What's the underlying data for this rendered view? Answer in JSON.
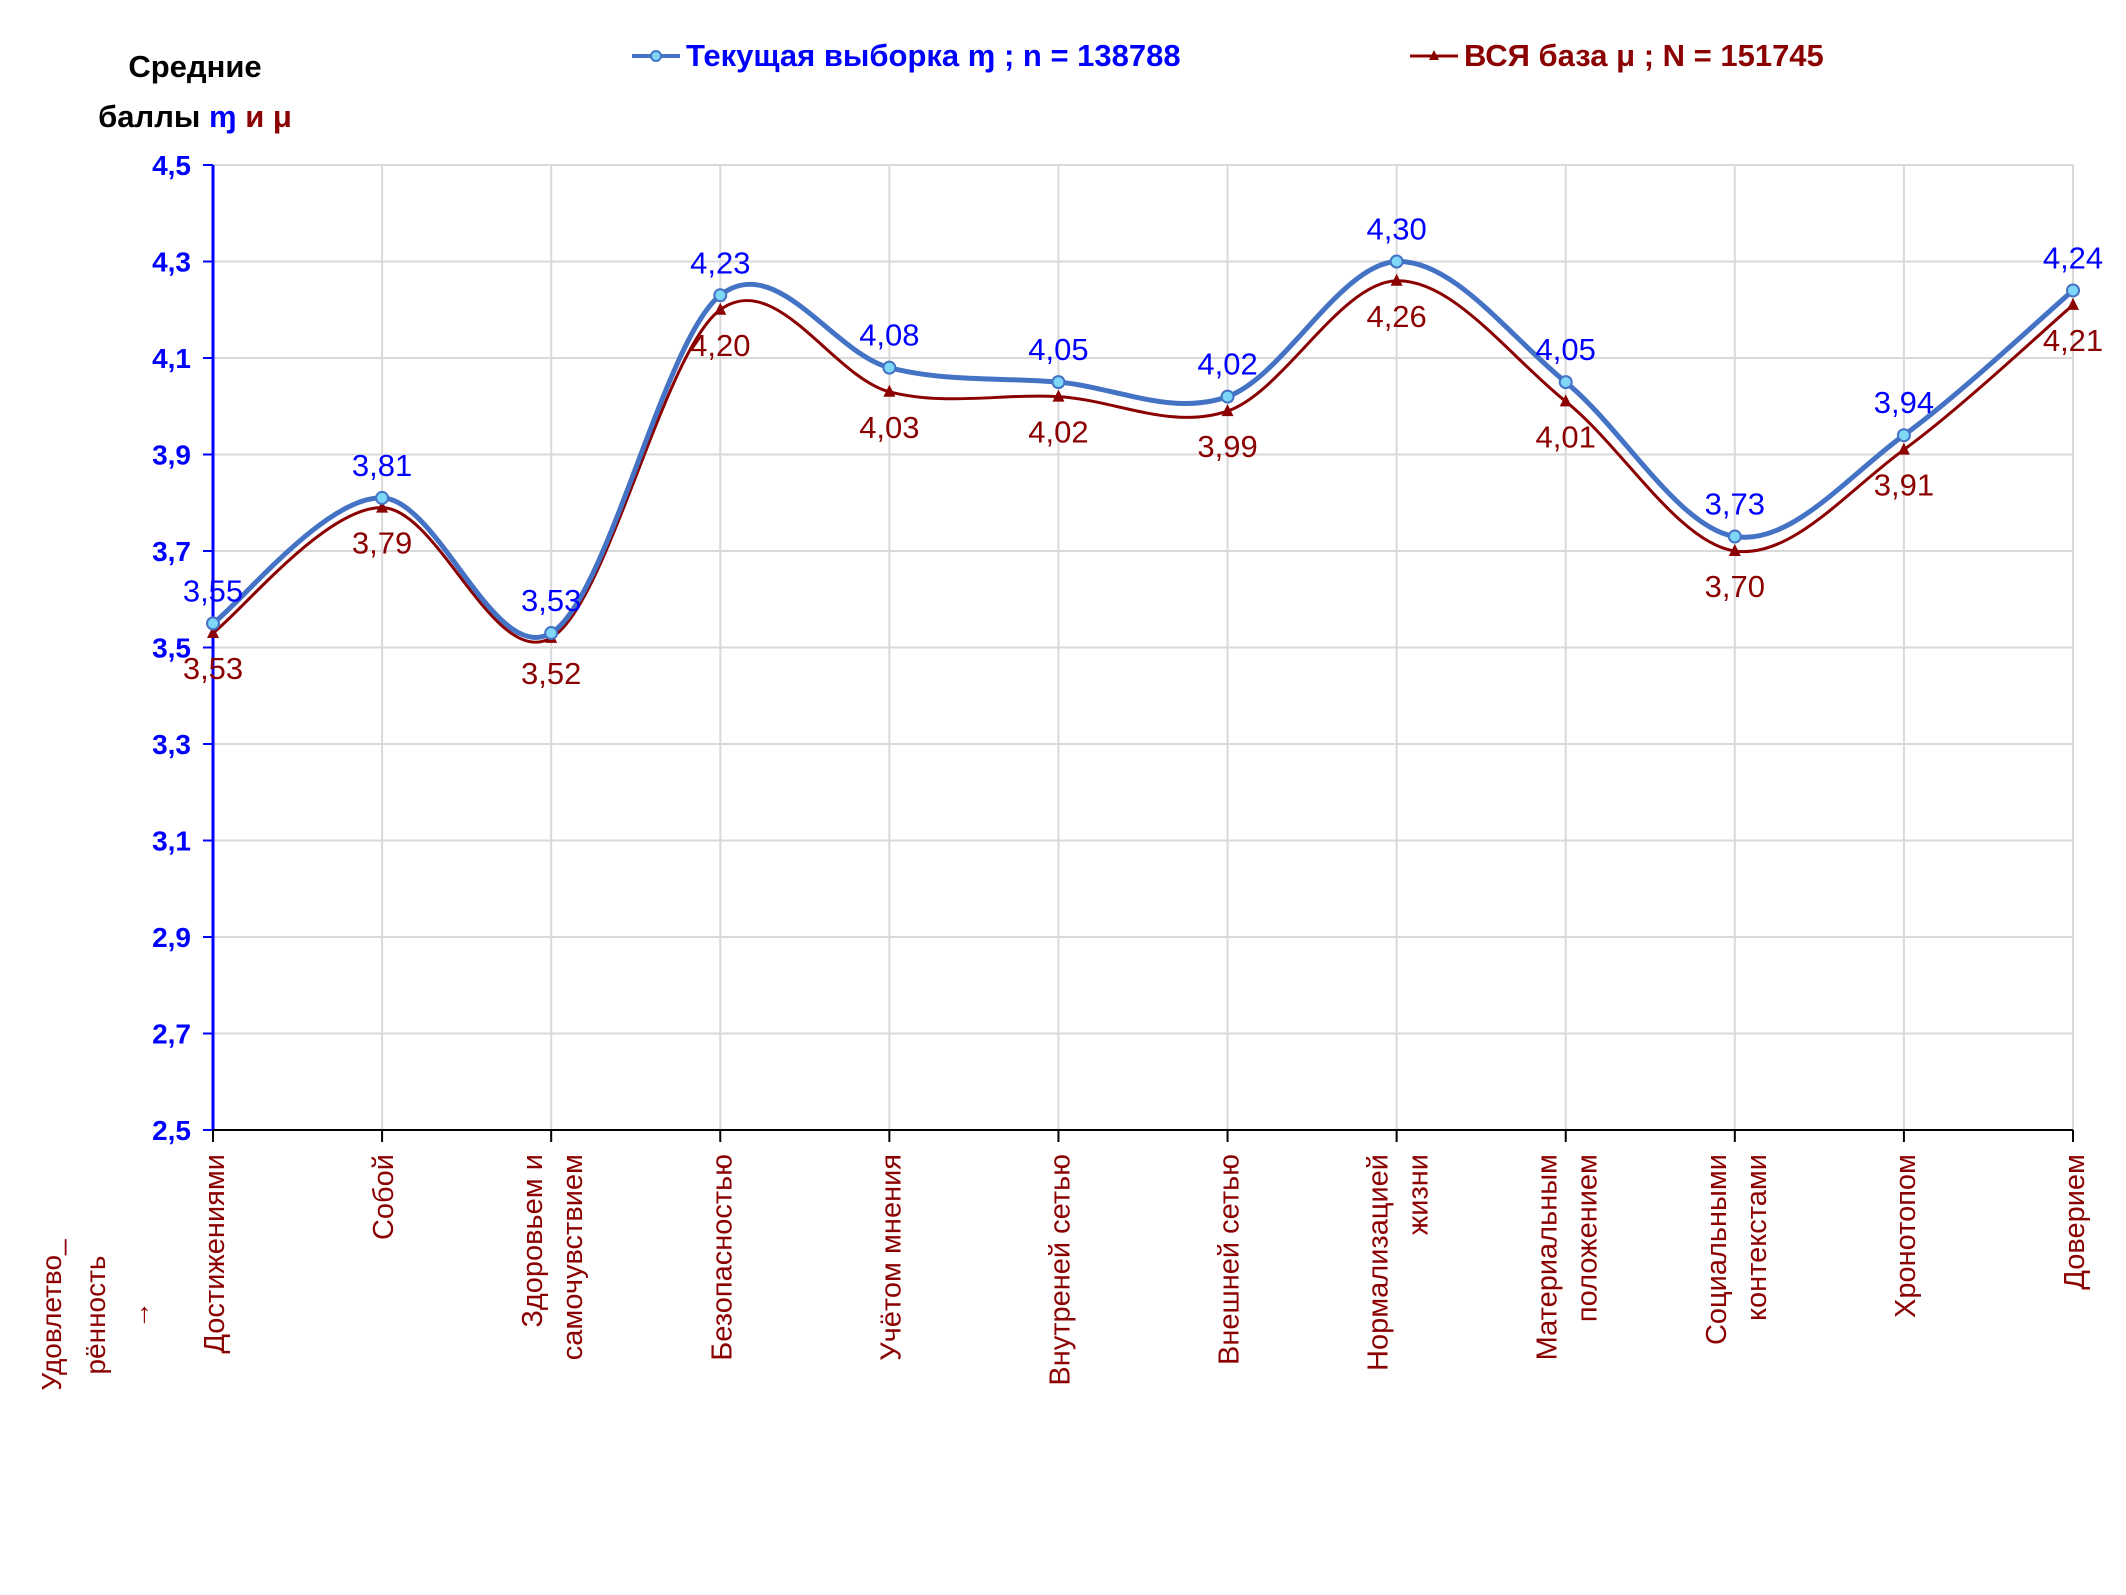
{
  "y_title": {
    "line1": "Средние",
    "line2_prefix": "баллы",
    "current_symbol": "ɱ",
    "conj": "и",
    "base_symbol": "μ"
  },
  "corner_label": {
    "line1": "Удовлетво_",
    "line2": "рённость",
    "line3": "→"
  },
  "legend": {
    "current": "Текущая выборка ɱ ; n = 138788",
    "base": "ВСЯ база μ ; N = 151745"
  },
  "colors": {
    "current": "#4472c4",
    "current_label": "#0000ff",
    "current_marker_fill": "#7fd7f7",
    "base": "#8b0000",
    "base_label": "#8b0000",
    "axis": "#0000ff",
    "grid": "#d9d9d9"
  },
  "chart_data": {
    "type": "line",
    "smooth": true,
    "categories": [
      [
        "Достижениями"
      ],
      [
        "Собой"
      ],
      [
        "Здоровьем и",
        "самочувствием"
      ],
      [
        "Безопасностью"
      ],
      [
        "Учётом мнения"
      ],
      [
        "Внутреней сетью"
      ],
      [
        "Внешней сетью"
      ],
      [
        "Нормализацией",
        "жизни"
      ],
      [
        "Материальным",
        "положением"
      ],
      [
        "Социальными",
        "контекстами"
      ],
      [
        "Хронотопом"
      ],
      [
        "Доверием"
      ]
    ],
    "series": [
      {
        "name": "Текущая выборка ɱ ; n = 138788",
        "values": [
          3.55,
          3.81,
          3.53,
          4.23,
          4.08,
          4.05,
          4.02,
          4.3,
          4.05,
          3.73,
          3.94,
          4.24
        ],
        "labels": [
          "3,55",
          "3,81",
          "3,53",
          "4,23",
          "4,08",
          "4,05",
          "4,02",
          "4,30",
          "4,05",
          "3,73",
          "3,94",
          "4,24"
        ],
        "marker": "circle"
      },
      {
        "name": "ВСЯ база μ ; N = 151745",
        "values": [
          3.53,
          3.79,
          3.52,
          4.2,
          4.03,
          4.02,
          3.99,
          4.26,
          4.01,
          3.7,
          3.91,
          4.21
        ],
        "labels": [
          "3,53",
          "3,79",
          "3,52",
          "4,20",
          "4,03",
          "4,02",
          "3,99",
          "4,26",
          "4,01",
          "3,70",
          "3,91",
          "4,21"
        ],
        "marker": "triangle"
      }
    ],
    "ylim": [
      2.5,
      4.5
    ],
    "yticks": [
      "2,5",
      "2,7",
      "2,9",
      "3,1",
      "3,3",
      "3,5",
      "3,7",
      "3,9",
      "4,1",
      "4,3",
      "4,5"
    ],
    "grid": true,
    "legend_position": "top"
  }
}
